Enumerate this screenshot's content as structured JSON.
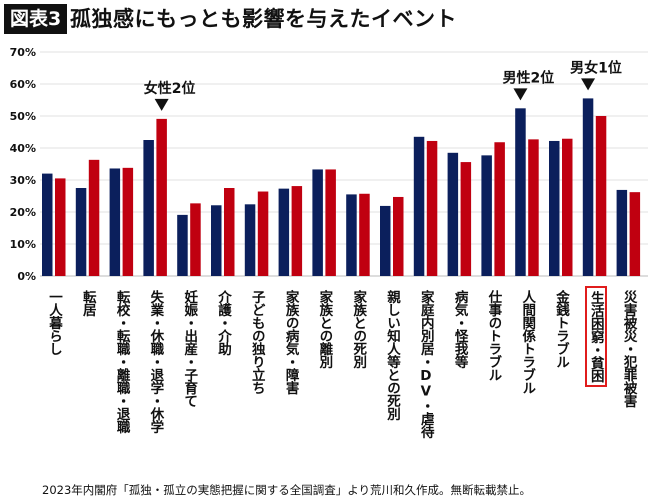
{
  "header": {
    "badge": "図表3",
    "title": "孤独感にもっとも影響を与えたイベント"
  },
  "source": "2023年内閣府「孤独・孤立の実態把握に関する全国調査」より荒川和久作成。無断転載禁止。",
  "chart_data": {
    "type": "bar",
    "title": "孤独感にもっとも影響を与えたイベント",
    "ylim": [
      0,
      70
    ],
    "yticks": [
      "0%",
      "10%",
      "20%",
      "30%",
      "40%",
      "50%",
      "60%",
      "70%"
    ],
    "grid": true,
    "categories": [
      "一人暮らし",
      "転居",
      "転校・転職・離職・退職",
      "失業・休職・退学・休学",
      "妊娠・出産・子育て",
      "介護・介助",
      "子どもの独り立ち",
      "家族の病気・障害",
      "家族との離別",
      "家族との死別",
      "親しい知人等との死別",
      "家庭内別居・DV・虐待",
      "病気・怪我等",
      "仕事のトラブル",
      "人間関係トラブル",
      "金銭トラブル",
      "生活困窮・貧困",
      "災害被災・犯罪被害"
    ],
    "highlighted_category": "生活困窮・貧困",
    "series": [
      {
        "color": "#0b1f5c",
        "values": [
          32.0,
          27.5,
          33.6,
          42.5,
          19.1,
          22.1,
          22.4,
          27.3,
          33.3,
          25.5,
          21.9,
          43.5,
          38.5,
          37.7,
          52.4,
          42.2,
          55.5,
          26.9
        ]
      },
      {
        "color": "#c00010",
        "values": [
          30.5,
          36.3,
          33.8,
          49.1,
          22.7,
          27.5,
          26.4,
          28.1,
          33.3,
          25.7,
          24.7,
          42.2,
          35.6,
          41.8,
          42.7,
          42.9,
          50.0,
          26.2
        ]
      }
    ],
    "annotations": [
      {
        "text": "女性2位",
        "category": "失業・休職・退学・休学",
        "series": 1
      },
      {
        "text": "男性2位",
        "category": "人間関係トラブル",
        "series": 0
      },
      {
        "text": "男女1位",
        "category": "生活困窮・貧困",
        "series": 0
      }
    ]
  }
}
